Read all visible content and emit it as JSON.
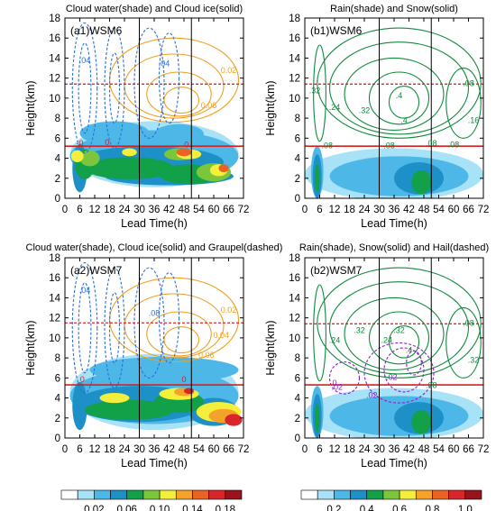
{
  "chart_data": {
    "type": "heatmap",
    "x_ticks": [
      0,
      6,
      12,
      18,
      24,
      30,
      36,
      42,
      48,
      54,
      60,
      66,
      72
    ],
    "y_ticks": [
      0,
      2,
      4,
      6,
      8,
      10,
      12,
      14,
      16,
      18
    ],
    "xlim": [
      0,
      72
    ],
    "ylim": [
      0,
      18
    ],
    "xlabel": "Lead Time(h)",
    "ylabel": "Height(km)",
    "vertical_lines_h": [
      30,
      51
    ],
    "panels": [
      {
        "id": "a1",
        "title": "Cloud water(shade) and Cloud ice(solid)",
        "label": "(a1)WSM6",
        "shade": "cloud water",
        "freezing_level_km": 5.2,
        "tropopause_km": 11.4,
        "contour_labels": [
          {
            "text": "0.02",
            "x": 66,
            "y": 12.5
          },
          {
            "text": "0.06",
            "x": 58,
            "y": 9.0
          },
          {
            "text": ".04",
            "x": 40,
            "y": 13.2
          },
          {
            "text": ".04",
            "x": 8,
            "y": 13.5
          },
          {
            "text": "-0",
            "x": 6,
            "y": 5.2
          },
          {
            "text": "0",
            "x": 17,
            "y": 5.3
          },
          {
            "text": "0",
            "x": 49,
            "y": 5.1
          }
        ]
      },
      {
        "id": "b1",
        "title": "Rain(shade) and Snow(solid)",
        "label": "(b1)WSM6",
        "shade": "rain",
        "freezing_level_km": 5.2,
        "tropopause_km": 11.4,
        "contour_labels": [
          {
            "text": ".32",
            "x": 4,
            "y": 10.5
          },
          {
            "text": ".24",
            "x": 12,
            "y": 8.8
          },
          {
            "text": ".32",
            "x": 24,
            "y": 8.5
          },
          {
            "text": ".4",
            "x": 38,
            "y": 10.0
          },
          {
            "text": ".4",
            "x": 40,
            "y": 7.5
          },
          {
            "text": ".08",
            "x": 66,
            "y": 11.2
          },
          {
            "text": ".16",
            "x": 68,
            "y": 7.5
          },
          {
            "text": ".08",
            "x": 9,
            "y": 5.0
          },
          {
            "text": ".08",
            "x": 34,
            "y": 5.0
          },
          {
            "text": ".08",
            "x": 51,
            "y": 5.2
          },
          {
            "text": ".08",
            "x": 60,
            "y": 5.1
          }
        ]
      },
      {
        "id": "a2",
        "title": "Cloud water(shade), Cloud ice(solid) and Graupel(dashed)",
        "label": "(a2)WSM7",
        "shade": "cloud water",
        "freezing_level_km": 5.3,
        "tropopause_km": 11.5,
        "contour_labels": [
          {
            "text": ".04",
            "x": 8,
            "y": 14.5
          },
          {
            "text": ".08",
            "x": 36,
            "y": 12.2
          },
          {
            "text": "0.02",
            "x": 66,
            "y": 12.5
          },
          {
            "text": "0.04",
            "x": 63,
            "y": 10.0
          },
          {
            "text": "0.06",
            "x": 57,
            "y": 8.0
          },
          {
            "text": "0",
            "x": 7,
            "y": 5.6
          },
          {
            "text": "0",
            "x": 48,
            "y": 5.6
          }
        ]
      },
      {
        "id": "b2",
        "title": "Rain(shade), Snow(solid) and Hail(dashed)",
        "label": "(b2)WSM7",
        "shade": "rain",
        "freezing_level_km": 5.3,
        "tropopause_km": 11.4,
        "contour_labels": [
          {
            "text": ".24",
            "x": 12,
            "y": 9.5
          },
          {
            "text": ".32",
            "x": 22,
            "y": 10.5
          },
          {
            "text": ".24",
            "x": 33,
            "y": 9.5
          },
          {
            "text": ".32",
            "x": 38,
            "y": 10.5
          },
          {
            "text": ".4",
            "x": 42,
            "y": 8.5
          },
          {
            "text": ".32",
            "x": 68,
            "y": 7.5
          },
          {
            "text": ".08",
            "x": 66,
            "y": 11.2
          },
          {
            "text": ".02",
            "x": 13,
            "y": 4.8
          },
          {
            "text": ".02",
            "x": 27,
            "y": 4.0
          },
          {
            "text": ".02",
            "x": 35,
            "y": 5.8
          },
          {
            "text": "0",
            "x": 12,
            "y": 5.2
          },
          {
            "text": ".08",
            "x": 51,
            "y": 5.0
          }
        ]
      }
    ],
    "colorbars": [
      {
        "for": "cloud water",
        "tick_labels": [
          "0.02",
          "0.06",
          "0.10",
          "0.14",
          "0.18"
        ],
        "levels": [
          0.01,
          0.02,
          0.04,
          0.06,
          0.08,
          0.1,
          0.12,
          0.14,
          0.16,
          0.18
        ],
        "colors": [
          "#ffffff",
          "#a8e2f6",
          "#4db8e8",
          "#1e90c8",
          "#12a048",
          "#7cc63c",
          "#f3ef3a",
          "#f4a22a",
          "#ea6325",
          "#d8262b",
          "#98141c"
        ]
      },
      {
        "for": "rain",
        "tick_labels": [
          "0.2",
          "0.4",
          "0.6",
          "0.8",
          "1.0"
        ],
        "levels": [
          0.1,
          0.2,
          0.3,
          0.4,
          0.5,
          0.6,
          0.7,
          0.8,
          0.9,
          1.0
        ],
        "colors": [
          "#ffffff",
          "#a8e2f6",
          "#4db8e8",
          "#1e90c8",
          "#12a048",
          "#7cc63c",
          "#f3ef3a",
          "#f4a22a",
          "#ea6325",
          "#d8262b",
          "#98141c"
        ]
      }
    ]
  }
}
